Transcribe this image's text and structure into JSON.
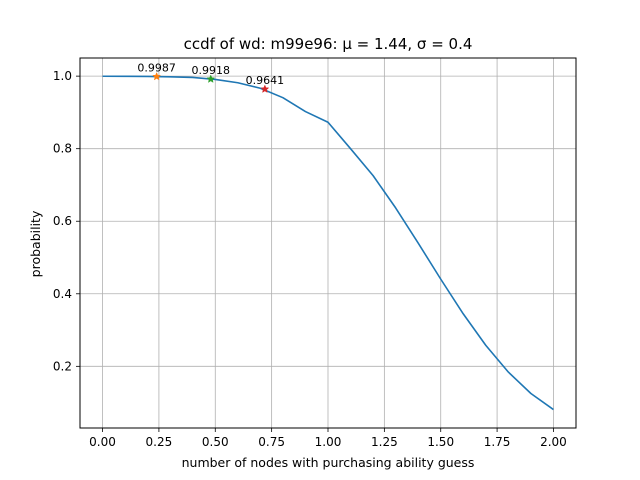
{
  "chart_data": {
    "type": "line",
    "title": "ccdf of wd: m99e96: μ = 1.44, σ = 0.4",
    "xlabel": "number of nodes with purchasing ability guess",
    "ylabel": "probability",
    "xlim": [
      -0.1,
      2.1
    ],
    "ylim": [
      0.03,
      1.05
    ],
    "xticks": [
      0.0,
      0.25,
      0.5,
      0.75,
      1.0,
      1.25,
      1.5,
      1.75,
      2.0
    ],
    "xtick_labels": [
      "0.00",
      "0.25",
      "0.50",
      "0.75",
      "1.00",
      "1.25",
      "1.50",
      "1.75",
      "2.00"
    ],
    "yticks": [
      0.2,
      0.4,
      0.6,
      0.8,
      1.0
    ],
    "ytick_labels": [
      "0.2",
      "0.4",
      "0.6",
      "0.8",
      "1.0"
    ],
    "grid": true,
    "legend": "none",
    "series": [
      {
        "color": "#1f77b4",
        "x": [
          0.0,
          0.1,
          0.2,
          0.3,
          0.4,
          0.5,
          0.6,
          0.7,
          0.8,
          0.9,
          1.0,
          1.1,
          1.2,
          1.3,
          1.4,
          1.5,
          1.6,
          1.7,
          1.8,
          1.9,
          2.0
        ],
        "y": [
          0.9997,
          0.9995,
          0.9991,
          0.9982,
          0.9965,
          0.9908,
          0.9818,
          0.9666,
          0.9406,
          0.9023,
          0.8729,
          0.8,
          0.7257,
          0.6368,
          0.5398,
          0.4404,
          0.3446,
          0.2578,
          0.1841,
          0.1251,
          0.0808
        ]
      }
    ],
    "markers": [
      {
        "x": 0.24,
        "y": 0.9987,
        "label": "0.9987",
        "color": "#ff7f0e"
      },
      {
        "x": 0.48,
        "y": 0.9918,
        "label": "0.9918",
        "color": "#2ca02c"
      },
      {
        "x": 0.72,
        "y": 0.9641,
        "label": "0.9641",
        "color": "#d62728"
      }
    ]
  }
}
